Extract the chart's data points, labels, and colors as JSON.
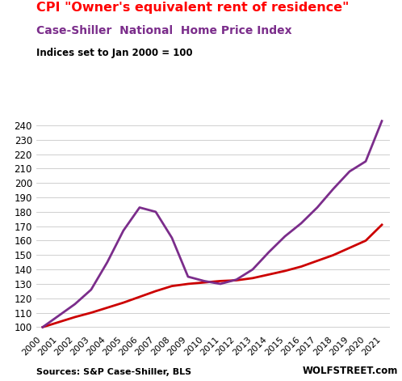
{
  "title1": "CPI \"Owner's equivalent rent of residence\"",
  "title2": "Case-Shiller  National  Home Price Index",
  "subtitle": "Indices set to Jan 2000 = 100",
  "source_left": "Sources: S&P Case-Shiller, BLS",
  "source_right": "WOLFSTREET.com",
  "title1_color": "#FF0000",
  "title2_color": "#7B2D8B",
  "line1_color": "#CC0000",
  "line2_color": "#7B2D8B",
  "ylim": [
    97,
    245
  ],
  "yticks": [
    100,
    110,
    120,
    130,
    140,
    150,
    160,
    170,
    180,
    190,
    200,
    210,
    220,
    230,
    240
  ],
  "years": [
    2000,
    2001,
    2002,
    2003,
    2004,
    2005,
    2006,
    2007,
    2008,
    2009,
    2010,
    2011,
    2012,
    2013,
    2014,
    2015,
    2016,
    2017,
    2018,
    2019,
    2020,
    2021
  ],
  "cpi_oer": [
    100,
    103.5,
    107,
    110,
    113.5,
    117,
    121,
    125,
    128.5,
    130,
    131,
    132,
    132.5,
    134,
    136.5,
    139,
    142,
    146,
    150,
    155,
    160,
    171
  ],
  "cs_index": [
    100,
    108,
    116,
    126,
    145,
    167,
    183,
    180,
    162,
    135,
    132,
    130,
    133,
    140,
    152,
    163,
    172,
    183,
    196,
    208,
    215,
    243
  ]
}
